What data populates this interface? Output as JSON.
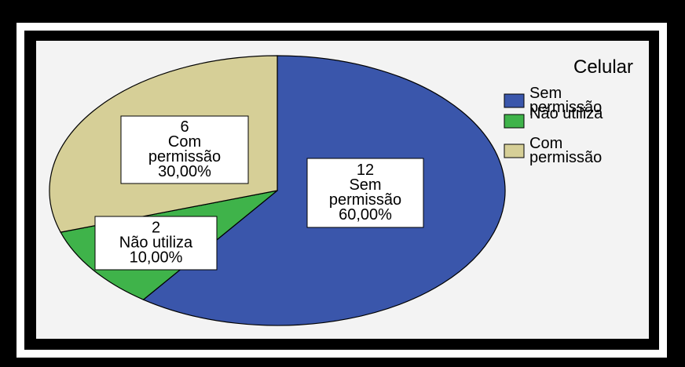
{
  "chart_data": {
    "type": "pie",
    "title": "",
    "legend_title": "Celular",
    "legend_position": "right",
    "slices": [
      {
        "name": "Sem permissão",
        "label_lines": [
          "Sem",
          "permissão"
        ],
        "count": 12,
        "count_label": "12",
        "percent": 60.0,
        "percent_label": "60,00%",
        "color": "#3a56ab"
      },
      {
        "name": "Não utiliza",
        "label_lines": [
          "Não utiliza"
        ],
        "count": 2,
        "count_label": "2",
        "percent": 10.0,
        "percent_label": "10,00%",
        "color": "#3fb34a"
      },
      {
        "name": "Com permissão",
        "label_lines": [
          "Com",
          "permissão"
        ],
        "count": 6,
        "count_label": "6",
        "percent": 30.0,
        "percent_label": "30,00%",
        "color": "#d6cf97"
      }
    ]
  }
}
